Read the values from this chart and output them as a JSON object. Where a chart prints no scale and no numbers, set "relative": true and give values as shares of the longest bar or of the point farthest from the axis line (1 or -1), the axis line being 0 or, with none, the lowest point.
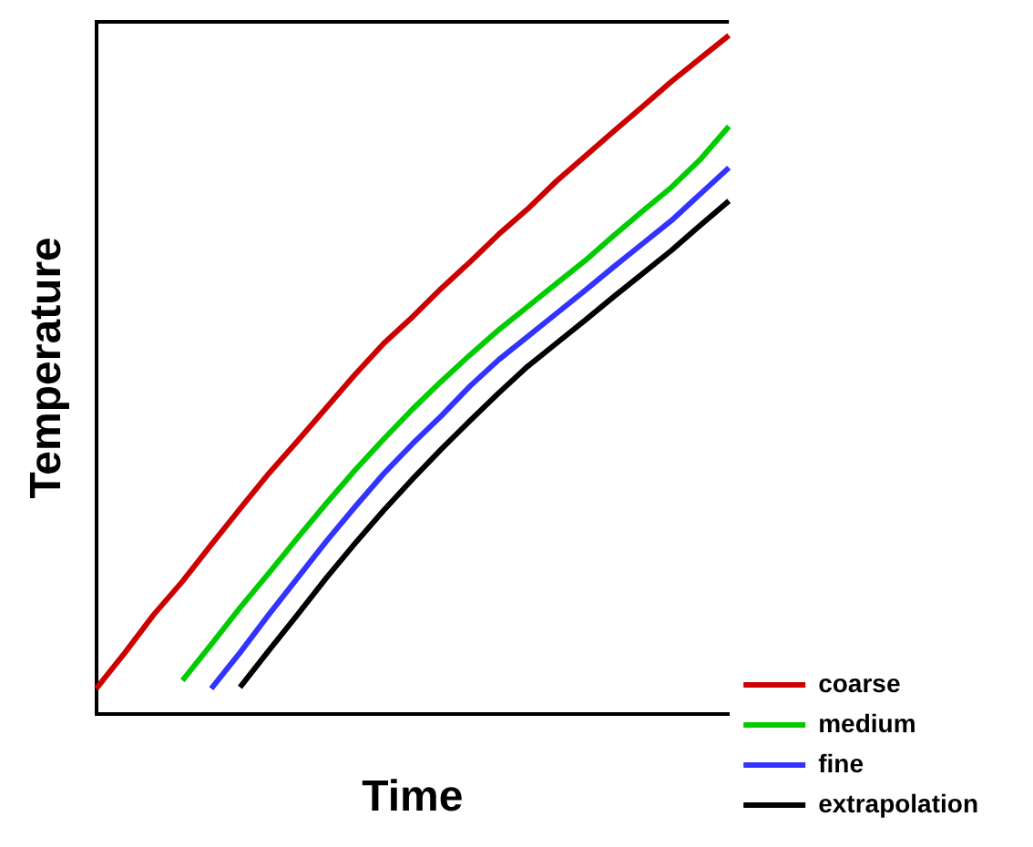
{
  "chart_data": {
    "type": "line",
    "xlabel": "Time",
    "ylabel": "Temperature",
    "relative": true,
    "grid": false,
    "legend": "bottom right",
    "marker": "none",
    "line_style": "solid",
    "categories": [
      null,
      null,
      null,
      null,
      null,
      null,
      null,
      null,
      null,
      null,
      null,
      null,
      null,
      null,
      null,
      null,
      null,
      null,
      null,
      null,
      null,
      null,
      null
    ],
    "series": [
      {
        "name": "coarse",
        "color": "#cc0000",
        "values": [
          0.037,
          0.09,
          0.146,
          0.195,
          0.249,
          0.302,
          0.354,
          0.402,
          0.451,
          0.5,
          0.546,
          0.585,
          0.627,
          0.666,
          0.707,
          0.744,
          0.785,
          0.822,
          0.859,
          0.895,
          0.932,
          0.966,
          1
        ]
      },
      {
        "name": "medium",
        "color": "#00cc00",
        "values": [
          null,
          null,
          null,
          0.049,
          0.102,
          0.156,
          0.207,
          0.259,
          0.31,
          0.359,
          0.405,
          0.449,
          0.49,
          0.529,
          0.566,
          0.6,
          0.634,
          0.668,
          0.705,
          0.741,
          0.776,
          0.817,
          0.866
        ]
      },
      {
        "name": "fine",
        "color": "#3333ff",
        "values": [
          null,
          null,
          null,
          null,
          0.037,
          0.09,
          0.146,
          0.2,
          0.254,
          0.305,
          0.354,
          0.398,
          0.439,
          0.483,
          0.522,
          0.556,
          0.59,
          0.624,
          0.659,
          0.693,
          0.727,
          0.766,
          0.805
        ]
      },
      {
        "name": "extrapolation",
        "color": "#000000",
        "values": [
          null,
          null,
          null,
          null,
          null,
          0.039,
          0.093,
          0.146,
          0.2,
          0.251,
          0.3,
          0.346,
          0.39,
          0.432,
          0.473,
          0.512,
          0.546,
          0.58,
          0.615,
          0.649,
          0.683,
          0.72,
          0.756
        ]
      }
    ]
  }
}
